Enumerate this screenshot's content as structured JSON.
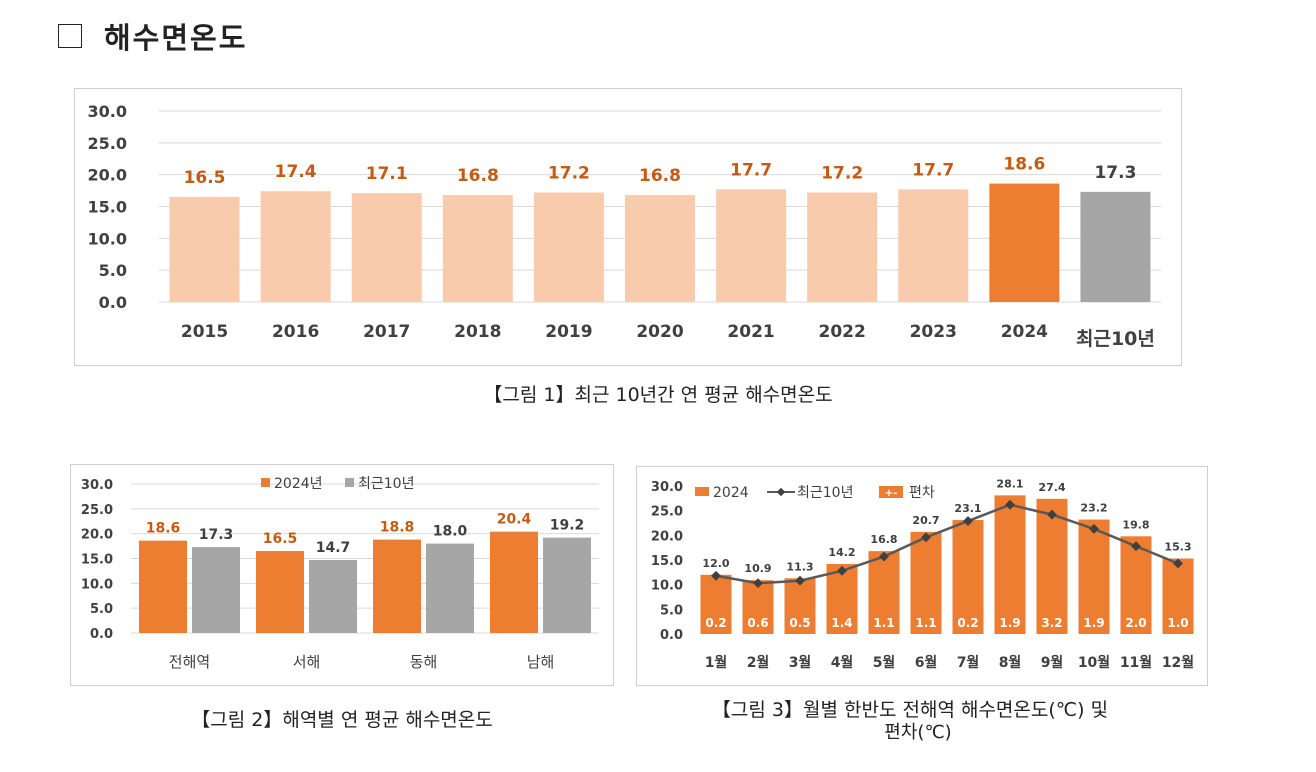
{
  "section": {
    "title": "해수면온도"
  },
  "captions": {
    "fig1": "【그림 1】최근 10년간 연 평균 해수면온도",
    "fig2": "【그림 2】해역별 연 평균 해수면온도",
    "fig3_line1": "【그림 3】월별 한반도 전해역 해수면온도(℃) 및",
    "fig3_line2": "편차(℃)"
  },
  "colors": {
    "light_bar": "#F9CBAD",
    "orange": "#ED7D31",
    "gray": "#A6A6A6",
    "label_brown": "#C55A11",
    "label_dark": "#404040",
    "line": "#595959",
    "grid": "#D9D9D9",
    "axis_text": "#404040"
  },
  "chart_data": [
    {
      "id": "fig1",
      "type": "bar",
      "title": "최근 10년간 연 평균 해수면온도",
      "categories": [
        "2015",
        "2016",
        "2017",
        "2018",
        "2019",
        "2020",
        "2021",
        "2022",
        "2023",
        "2024",
        "최근10년"
      ],
      "values": [
        16.5,
        17.4,
        17.1,
        16.8,
        17.2,
        16.8,
        17.7,
        17.2,
        17.7,
        18.6,
        17.3
      ],
      "yticks": [
        "0.0",
        "5.0",
        "10.0",
        "15.0",
        "20.0",
        "25.0",
        "30.0"
      ],
      "ylim": [
        0,
        30
      ],
      "grid": true,
      "legend": "none"
    },
    {
      "id": "fig2",
      "type": "bar",
      "title": "해역별 연 평균 해수면온도",
      "categories": [
        "전해역",
        "서해",
        "동해",
        "남해"
      ],
      "series": [
        {
          "name": "2024년",
          "values": [
            18.6,
            16.5,
            18.8,
            20.4
          ]
        },
        {
          "name": "최근10년",
          "values": [
            17.3,
            14.7,
            18.0,
            19.2
          ]
        }
      ],
      "yticks": [
        "0.0",
        "5.0",
        "10.0",
        "15.0",
        "20.0",
        "25.0",
        "30.0"
      ],
      "ylim": [
        0,
        30
      ],
      "grid": true,
      "legend": "top"
    },
    {
      "id": "fig3",
      "type": "bar",
      "title": "월별 한반도 전해역 해수면온도(℃) 및 편차(℃)",
      "categories": [
        "1월",
        "2월",
        "3월",
        "4월",
        "5월",
        "6월",
        "7월",
        "8월",
        "9월",
        "10월",
        "11월",
        "12월"
      ],
      "series": [
        {
          "name": "2024",
          "kind": "bar",
          "values": [
            12.0,
            10.9,
            11.3,
            14.2,
            16.8,
            20.7,
            23.1,
            28.1,
            27.4,
            23.2,
            19.8,
            15.3
          ]
        },
        {
          "name": "최근10년",
          "kind": "line",
          "values": [
            11.8,
            10.3,
            10.8,
            12.8,
            15.7,
            19.6,
            22.9,
            26.2,
            24.2,
            21.3,
            17.8,
            14.3
          ]
        },
        {
          "name": "편차",
          "kind": "label",
          "values": [
            "0.2",
            "0.6",
            "0.5",
            "1.4",
            "1.1",
            "1.1",
            "0.2",
            "1.9",
            "3.2",
            "1.9",
            "2.0",
            "1.0"
          ]
        }
      ],
      "legend_deviation_glyph": "+-",
      "yticks": [
        "0.0",
        "5.0",
        "10.0",
        "15.0",
        "20.0",
        "25.0",
        "30.0"
      ],
      "ylim": [
        0,
        30
      ],
      "grid": false,
      "legend": "top-left"
    }
  ]
}
